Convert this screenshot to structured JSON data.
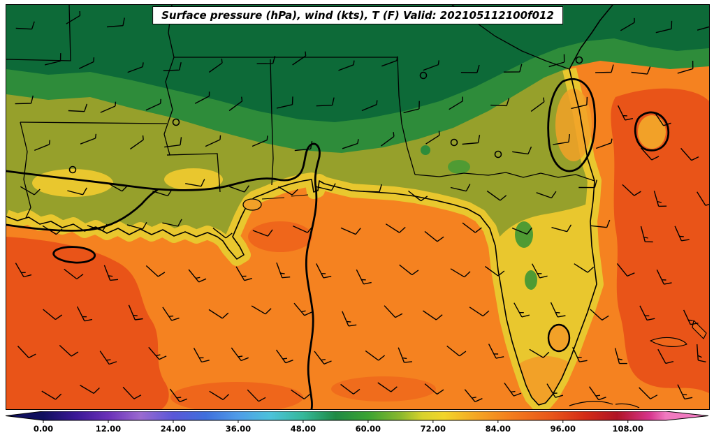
{
  "figure": {
    "title": "Surface pressure (hPa), wind (kts), T (F) Valid: 202105112100f012"
  },
  "chart_data": {
    "type": "heatmap",
    "title": "Surface pressure (hPa), wind (kts), T (F) Valid: 202105112100f012",
    "valid_stamp": "202105112100f012",
    "region": "Southeastern United States, Gulf of Mexico and western Atlantic",
    "fields": {
      "shaded": "surface temperature (F)",
      "contours": "surface pressure (hPa), thick black lines with closed lows/highs near the Georgia coast, offshore Atlantic, coastal Louisiana, and a trough through the central Gulf",
      "vectors": "wind barbs (kts)"
    },
    "colorbar": {
      "orientation": "horizontal",
      "vmin": 0,
      "vmax": 115,
      "extended_both_ends": true,
      "ticks": [
        0,
        12,
        24,
        36,
        48,
        60,
        72,
        84,
        96,
        108
      ],
      "tick_labels": [
        "0.00",
        "12.00",
        "24.00",
        "36.00",
        "48.00",
        "60.00",
        "72.00",
        "84.00",
        "96.00",
        "108.00"
      ],
      "stops": [
        {
          "v": 0,
          "c": "#10105e"
        },
        {
          "v": 6,
          "c": "#3a1896"
        },
        {
          "v": 12,
          "c": "#6a30b8"
        },
        {
          "v": 18,
          "c": "#9a6ad0"
        },
        {
          "v": 24,
          "c": "#5a58d8"
        },
        {
          "v": 30,
          "c": "#3f6fdc"
        },
        {
          "v": 36,
          "c": "#4f9ce8"
        },
        {
          "v": 42,
          "c": "#4cc2da"
        },
        {
          "v": 48,
          "c": "#35b89a"
        },
        {
          "v": 54,
          "c": "#1f8a45"
        },
        {
          "v": 60,
          "c": "#3aa332"
        },
        {
          "v": 66,
          "c": "#8ab82e"
        },
        {
          "v": 70,
          "c": "#d8d22c"
        },
        {
          "v": 74,
          "c": "#f2d52a"
        },
        {
          "v": 80,
          "c": "#f5a623"
        },
        {
          "v": 86,
          "c": "#f47f1e"
        },
        {
          "v": 94,
          "c": "#e8551a"
        },
        {
          "v": 100,
          "c": "#d42c16"
        },
        {
          "v": 106,
          "c": "#b01426"
        },
        {
          "v": 112,
          "c": "#d6348c"
        },
        {
          "v": 115,
          "c": "#f07ac0"
        }
      ]
    },
    "temperature_regions": [
      {
        "area": "inland north (TN line, north AL / north GA)",
        "approx_F": "58-64"
      },
      {
        "area": "central MS / AL / GA",
        "approx_F": "64-72"
      },
      {
        "area": "coastal plain, Louisiana, north Florida",
        "approx_F": "72-78"
      },
      {
        "area": "Gulf of Mexico and Atlantic waters",
        "approx_F": "80-88"
      },
      {
        "area": "western Gulf and offshore Atlantic",
        "approx_F": "88-92"
      }
    ],
    "wind": {
      "north_land": {
        "dir_from_deg": 75,
        "spd_kts": [
          5,
          10
        ],
        "summary": "light E-NE"
      },
      "transition": {
        "dir_from_deg": 110,
        "spd_kts": [
          10,
          10
        ],
        "summary": "ESE 10"
      },
      "gulf": {
        "dir_from_deg": 140,
        "spd_kts": [
          10,
          15
        ],
        "summary": "SE 10-15"
      },
      "atlantic": {
        "dir_from_deg": 155,
        "spd_kts": [
          10,
          15
        ],
        "summary": "SSE 10-15"
      }
    }
  },
  "palette": {
    "t_dark_green": "#0d6a38",
    "t_green": "#2e8c3a",
    "t_patch_green": "#4f9b33",
    "t_olive": "#96a02b",
    "t_yellow": "#e9c72e",
    "t_gold": "#f2a128",
    "t_orange": "#f58220",
    "t_deep_orange": "#ef661b",
    "t_red_orange": "#e95418",
    "line": "#000000",
    "background": "#ffffff"
  }
}
